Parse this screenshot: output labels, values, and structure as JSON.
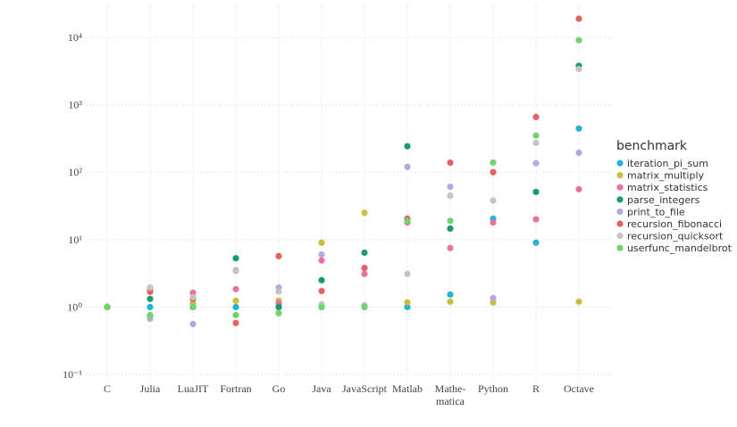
{
  "chart_data": {
    "type": "scatter",
    "categories": [
      "C",
      "Julia",
      "LuaJIT",
      "Fortran",
      "Go",
      "Java",
      "JavaScript",
      "Matlab",
      "Mathe-\nmatica",
      "Python",
      "R",
      "Octave"
    ],
    "legend_title": "benchmark",
    "log_y": true,
    "grid": true,
    "ylim": [
      0.1,
      30000
    ],
    "yticks": [
      {
        "value": 0.1,
        "label": "10⁻¹"
      },
      {
        "value": 1,
        "label": "10⁰"
      },
      {
        "value": 10,
        "label": "10¹"
      },
      {
        "value": 100,
        "label": "10²"
      },
      {
        "value": 1000,
        "label": "10³"
      },
      {
        "value": 10000,
        "label": "10⁴"
      }
    ],
    "series": [
      {
        "name": "iteration_pi_sum",
        "color": "#23b4d3",
        "values": [
          1,
          1,
          1,
          1,
          1,
          1,
          1,
          1,
          1.53,
          20.5,
          9,
          445
        ]
      },
      {
        "name": "matrix_multiply",
        "color": "#c6c03f",
        "values": [
          1,
          0.74,
          1.13,
          1.24,
          1.24,
          9,
          25,
          1.17,
          1.2,
          1.17,
          null,
          1.2
        ]
      },
      {
        "name": "matrix_statistics",
        "color": "#e8739f",
        "values": [
          1,
          1.84,
          1.63,
          1.84,
          1.13,
          4.9,
          3.1,
          18,
          7.5,
          18,
          20,
          56
        ]
      },
      {
        "name": "parse_integers",
        "color": "#1a9c72",
        "values": [
          1,
          1.32,
          1,
          5.3,
          1,
          2.5,
          6.4,
          243,
          14.6,
          null,
          51,
          3800
        ]
      },
      {
        "name": "print_to_file",
        "color": "#b3a9e2",
        "values": [
          1,
          0.67,
          0.56,
          3.5,
          1.95,
          6,
          1.06,
          120,
          61,
          1.36,
          136,
          195
        ]
      },
      {
        "name": "recursion_fibonacci",
        "color": "#e5625d",
        "values": [
          1,
          1.68,
          1.32,
          0.58,
          5.7,
          1.73,
          3.8,
          20.5,
          139,
          100,
          660,
          19000
        ]
      },
      {
        "name": "recursion_quicksort",
        "color": "#c4c4c4",
        "values": [
          1,
          1.95,
          1.4,
          3.4,
          1.7,
          1.1,
          1.05,
          3.1,
          45,
          38,
          272,
          3400
        ]
      },
      {
        "name": "userfunc_mandelbrot",
        "color": "#6fd46c",
        "values": [
          1,
          0.76,
          1,
          0.76,
          0.81,
          1,
          1,
          19,
          19,
          139,
          350,
          9100
        ]
      }
    ]
  }
}
